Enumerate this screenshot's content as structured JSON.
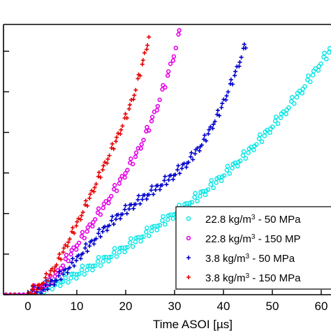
{
  "chart_data": {
    "type": "scatter",
    "title": "",
    "xlabel": "Time ASOI [µs]",
    "ylabel": "",
    "xlim": [
      -5,
      62
    ],
    "ylim": [
      0,
      33.3
    ],
    "x_ticks": [
      0,
      10,
      20,
      30,
      40,
      50,
      60
    ],
    "y_ticks": [
      0,
      5,
      10,
      15,
      20,
      25,
      30
    ],
    "x_tick_labels": [
      "0",
      "10",
      "20",
      "30",
      "40",
      "50",
      "60"
    ],
    "y_tick_labels_visible": false,
    "grid": false,
    "legend_position": "bottom-right",
    "series": [
      {
        "name": "22.8 kg/m",
        "name_superscript": "3",
        "name_suffix": " - 50 MPa",
        "color": "#00e5e5",
        "marker": "circle",
        "x": [
          0,
          4,
          8,
          12,
          16,
          20,
          24,
          28,
          32,
          36,
          40,
          44,
          48,
          52,
          56,
          60,
          62
        ],
        "y": [
          0,
          0.8,
          1.8,
          3.0,
          4.3,
          5.7,
          7.3,
          9.0,
          10.7,
          12.5,
          14.6,
          16.8,
          19.3,
          22.0,
          25.1,
          28.5,
          30.2
        ]
      },
      {
        "name": "22.8 kg/m",
        "name_superscript": "3",
        "name_suffix": " - 150 MP",
        "color": "#e600e6",
        "marker": "ring",
        "x": [
          0,
          2,
          4,
          6,
          8,
          10,
          12,
          14,
          16,
          18,
          20,
          22,
          24,
          26,
          28,
          30,
          31
        ],
        "y": [
          0,
          0.5,
          1.2,
          2.6,
          4.3,
          6.0,
          7.7,
          9.5,
          11.2,
          13.0,
          15.0,
          17.0,
          19.5,
          22.4,
          25.8,
          29.8,
          32.2
        ]
      },
      {
        "name": "3.8 kg/m",
        "name_superscript": "3",
        "name_suffix": " - 50 MPa",
        "color": "#0000cc",
        "marker": "plus",
        "x": [
          0,
          3,
          6,
          9,
          12,
          15,
          18,
          21,
          24,
          27,
          30,
          33,
          36,
          39,
          42,
          45
        ],
        "y": [
          0,
          0.6,
          1.8,
          3.6,
          5.6,
          7.6,
          9.3,
          10.7,
          12.0,
          13.3,
          14.7,
          16.4,
          18.8,
          22.2,
          26.5,
          31.5
        ]
      },
      {
        "name": "3.8 kg/m",
        "name_superscript": "3",
        "name_suffix": " - 150 MPa",
        "color": "#e60000",
        "marker": "plus",
        "x": [
          0,
          2,
          4,
          6,
          8,
          10,
          12,
          14,
          16,
          18,
          20,
          22,
          24,
          25
        ],
        "y": [
          0,
          0.7,
          2.0,
          3.8,
          6.2,
          8.6,
          11.1,
          13.7,
          16.3,
          18.9,
          21.7,
          25.1,
          29.8,
          32.4
        ]
      }
    ]
  }
}
